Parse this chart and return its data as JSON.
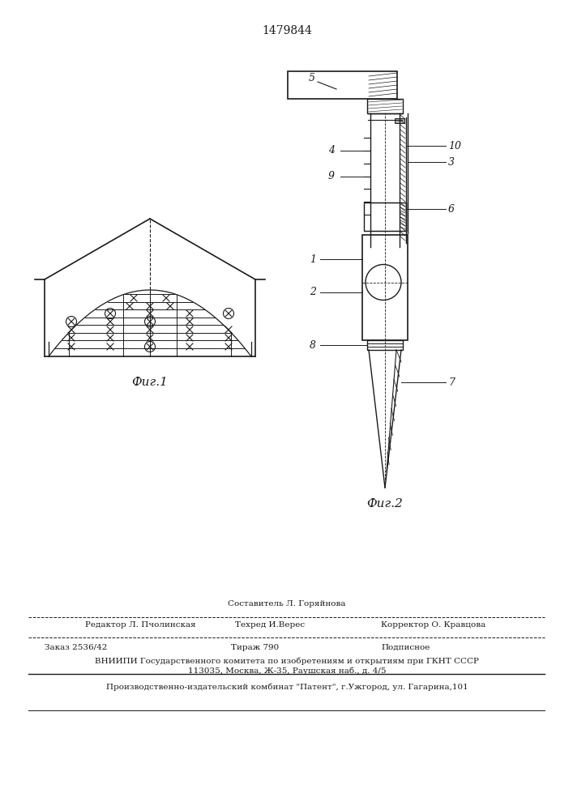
{
  "title_number": "1479844",
  "bg_color": "#ffffff",
  "line_color": "#1a1a1a",
  "fig1_label": "Фиг.1",
  "fig2_label": "Фиг.2",
  "footer_sestavitel": "Составитель Л. Горяйнова",
  "footer_redaktor": "Редактор Л. Пчолинская",
  "footer_tehred": "Техред И.Верес",
  "footer_korrektor": "Корректор О. Кравцова",
  "footer_zakaz": "Заказ 2536/42",
  "footer_tirazh": "Тираж 790",
  "footer_podpisnoe": "Подписное",
  "footer_vniipи1": "ВНИИПИ Государственного комитета по изобретениям и открытиям при ГКНТ СССР",
  "footer_vniipи2": "113035, Москва, Ж-35, Раушская наб., д. 4/5",
  "footer_patent": "Производственно-издательский комбинат \"Патент\", г.Ужгород, ул. Гагарина,101"
}
